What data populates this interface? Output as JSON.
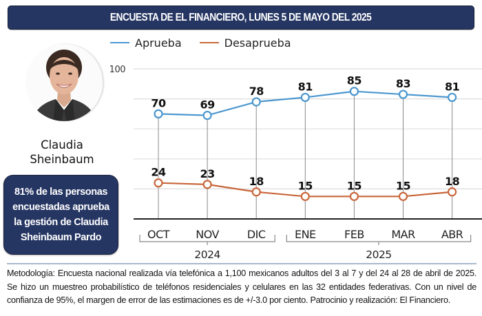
{
  "header": {
    "title": "ENCUESTA DE EL FINANCIERO, LUNES 5 DE MAYO DEL 2025"
  },
  "person": {
    "name_line1": "Claudia",
    "name_line2": "Sheinbaum",
    "photo_icon": "portrait-photo"
  },
  "callout": {
    "lines": [
      "81% de las personas",
      "encuestadas aprueba",
      "la gestión de Claudia",
      "Sheinbaum Pardo"
    ]
  },
  "colors": {
    "navy": "#263663",
    "aprueba": "#4a96cf",
    "desaprueba": "#c8663a",
    "grid": "#dddddd",
    "drop_line": "#888888",
    "footer_rule": "#a9b7cc"
  },
  "chart_data": {
    "type": "line",
    "title": "",
    "xlabel": "",
    "ylabel": "",
    "ylim": [
      0,
      100
    ],
    "y_ticks_labeled": [
      100
    ],
    "y_gridlines": [
      20,
      40,
      60,
      80,
      100
    ],
    "grid": true,
    "legend": "top-left",
    "categories": [
      "OCT",
      "NOV",
      "DIC",
      "ENE",
      "FEB",
      "MAR",
      "ABR"
    ],
    "year_groups": [
      {
        "label": "2024",
        "categories": [
          "OCT",
          "NOV",
          "DIC"
        ]
      },
      {
        "label": "2025",
        "categories": [
          "ENE",
          "FEB",
          "MAR",
          "ABR"
        ]
      }
    ],
    "series": [
      {
        "name": "Aprueba",
        "color": "#4a96cf",
        "values": [
          70,
          69,
          78,
          81,
          85,
          83,
          81
        ]
      },
      {
        "name": "Desaprueba",
        "color": "#c8663a",
        "values": [
          24,
          23,
          18,
          15,
          15,
          15,
          18
        ]
      }
    ]
  },
  "footer": {
    "methodology": "Metodología: Encuesta nacional realizada vía telefónica a 1,100 mexicanos adultos del 3 al 7 y del 24 al 28 de abril de 2025. Se hizo un muestreo probabilístico de teléfonos residenciales y celulares en las 32 entidades federativas. Con un nivel de confianza de 95%, el margen de error de las estimaciones es de +/-3.0 por ciento. Patrocinio y realización: El Financiero."
  }
}
